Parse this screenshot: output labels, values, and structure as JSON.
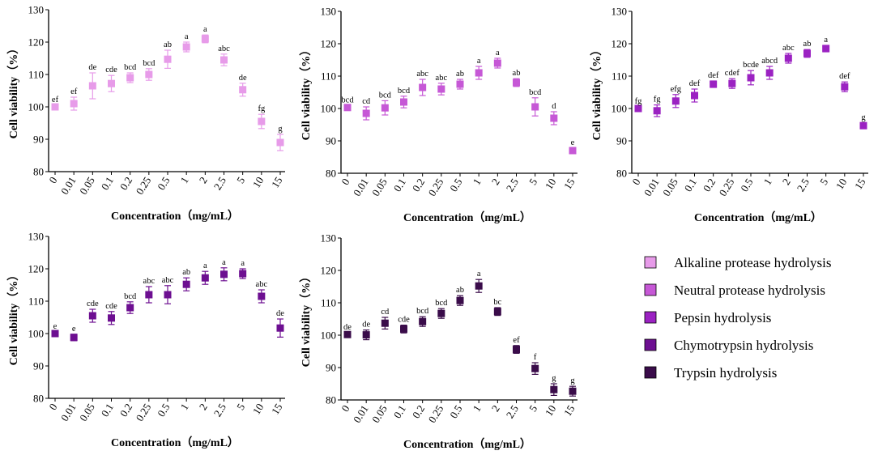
{
  "legend": {
    "items": [
      {
        "label": "Alkaline protease hydrolysis",
        "color": "#e79be9"
      },
      {
        "label": "Neutral protease hydrolysis",
        "color": "#c658d6"
      },
      {
        "label": "Pepsin hydrolysis",
        "color": "#9b22c2"
      },
      {
        "label": "Chymotrypsin hydrolysis",
        "color": "#6d0f91"
      },
      {
        "label": "Trypsin hydrolysis",
        "color": "#3a0c4a"
      }
    ]
  },
  "chart_data": [
    {
      "type": "scatter",
      "series_name": "Alkaline protease hydrolysis",
      "color": "#e79be9",
      "title": "",
      "xlabel": "Concentration（mg/mL）",
      "ylabel": "Cell viability（%）",
      "ylim": [
        80,
        130
      ],
      "yticks": [
        80,
        90,
        100,
        110,
        120,
        130
      ],
      "categories": [
        "0",
        "0.01",
        "0.05",
        "0.1",
        "0.2",
        "0.25",
        "0.5",
        "1",
        "2",
        "2.5",
        "5",
        "10",
        "15"
      ],
      "values": [
        100,
        101,
        106.5,
        107.2,
        109,
        110,
        114.7,
        118.5,
        121,
        114.5,
        105.3,
        95.5,
        89
      ],
      "errors": [
        0.5,
        2,
        4,
        2.5,
        1.5,
        1.8,
        2.8,
        1.5,
        1.2,
        1.8,
        2,
        2.2,
        2.5
      ],
      "labels": [
        "ef",
        "ef",
        "de",
        "cde",
        "bcd",
        "bcd",
        "ab",
        "a",
        "a",
        "abc",
        "de",
        "fg",
        "g"
      ]
    },
    {
      "type": "scatter",
      "series_name": "Neutral protease hydrolysis",
      "color": "#c658d6",
      "title": "",
      "xlabel": "Concentration（mg/mL）",
      "ylabel": "Cell viability（%）",
      "ylim": [
        80,
        130
      ],
      "yticks": [
        80,
        90,
        100,
        110,
        120,
        130
      ],
      "categories": [
        "0",
        "0.01",
        "0.05",
        "0.1",
        "0.2",
        "0.25",
        "0.5",
        "1",
        "2",
        "2.5",
        "5",
        "10",
        "15"
      ],
      "values": [
        100.3,
        98.5,
        100.2,
        102,
        106.5,
        106,
        107.5,
        111,
        114,
        108,
        100.5,
        97,
        87
      ],
      "errors": [
        0.6,
        2,
        2.2,
        1.8,
        2.5,
        1.8,
        1.5,
        2,
        1.5,
        1.2,
        2.8,
        2,
        0.7
      ],
      "labels": [
        "bcd",
        "cd",
        "bcd",
        "bcd",
        "abc",
        "abc",
        "ab",
        "a",
        "a",
        "ab",
        "bcd",
        "d",
        "e"
      ]
    },
    {
      "type": "scatter",
      "series_name": "Pepsin hydrolysis",
      "color": "#9b22c2",
      "title": "",
      "xlabel": "Concentration（mg/mL）",
      "ylabel": "Cell viability（%）",
      "ylim": [
        80,
        130
      ],
      "yticks": [
        80,
        90,
        100,
        110,
        120,
        130
      ],
      "categories": [
        "0",
        "0.01",
        "0.05",
        "0.1",
        "0.2",
        "0.25",
        "0.5",
        "1",
        "2",
        "2.5",
        "5",
        "10",
        "15"
      ],
      "values": [
        100,
        99.3,
        102.3,
        104,
        107.5,
        107.7,
        109.5,
        111,
        115.5,
        117,
        118.5,
        106.7,
        94.7
      ],
      "errors": [
        0.5,
        1.8,
        2,
        2,
        1,
        1.5,
        2.2,
        2,
        1.5,
        1.2,
        1,
        1.5,
        0.8
      ],
      "labels": [
        "fg",
        "fg",
        "efg",
        "def",
        "def",
        "cdef",
        "bcde",
        "abcd",
        "abc",
        "ab",
        "a",
        "def",
        "g"
      ]
    },
    {
      "type": "scatter",
      "series_name": "Chymotrypsin hydrolysis",
      "color": "#6d0f91",
      "title": "",
      "xlabel": "Concentration（mg/mL）",
      "ylabel": "Cell viability（%）",
      "ylim": [
        80,
        130
      ],
      "yticks": [
        80,
        90,
        100,
        110,
        120,
        130
      ],
      "categories": [
        "0",
        "0.01",
        "0.05",
        "0.1",
        "0.2",
        "0.25",
        "0.5",
        "1",
        "2",
        "2.5",
        "5",
        "10",
        "15"
      ],
      "values": [
        100,
        98.8,
        105.5,
        104.8,
        108,
        112,
        112,
        115.2,
        117.2,
        118.3,
        118.5,
        111.5,
        101.7
      ],
      "errors": [
        0.5,
        1,
        2,
        2,
        1.8,
        2.5,
        2.8,
        2,
        2,
        2,
        1.5,
        2,
        2.8
      ],
      "labels": [
        "e",
        "e",
        "cde",
        "cde",
        "bcd",
        "abc",
        "abc",
        "ab",
        "a",
        "a",
        "a",
        "abc",
        "de"
      ]
    },
    {
      "type": "scatter",
      "series_name": "Trypsin hydrolysis",
      "color": "#3a0c4a",
      "title": "",
      "xlabel": "Concentration（mg/mL）",
      "ylabel": "Cell viability（%）",
      "ylim": [
        80,
        130
      ],
      "yticks": [
        80,
        90,
        100,
        110,
        120,
        130
      ],
      "categories": [
        "0",
        "0.01",
        "0.05",
        "0.1",
        "0.2",
        "0.25",
        "0.5",
        "1",
        "2",
        "2.5",
        "5",
        "10",
        "15"
      ],
      "values": [
        100.2,
        100.1,
        103.7,
        101.9,
        104.2,
        106.7,
        110.7,
        115.2,
        107.3,
        95.6,
        89.7,
        83.2,
        82.7
      ],
      "errors": [
        0.6,
        1.5,
        1.8,
        1.2,
        1.5,
        1.5,
        1.5,
        2,
        1.2,
        1.2,
        1.8,
        1.8,
        1.5
      ],
      "labels": [
        "de",
        "de",
        "cd",
        "cde",
        "bcd",
        "bcd",
        "ab",
        "a",
        "bc",
        "ef",
        "f",
        "g",
        "g"
      ]
    }
  ]
}
